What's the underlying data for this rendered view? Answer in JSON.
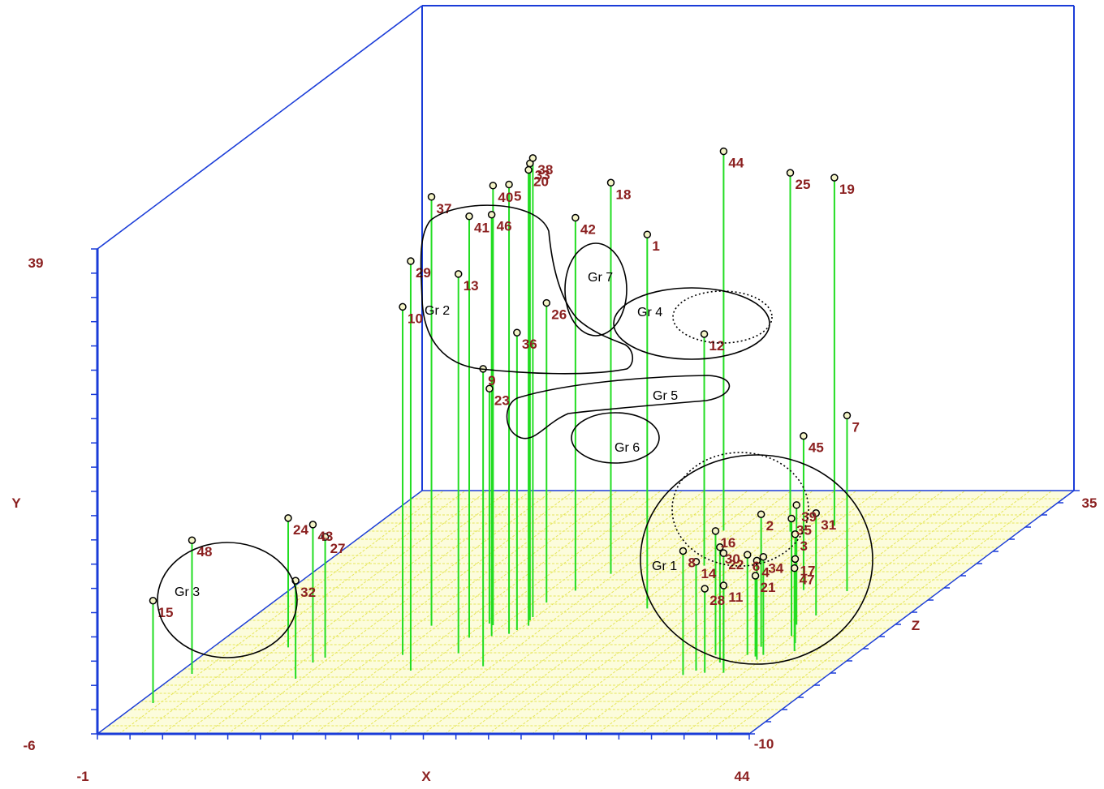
{
  "chart_data": {
    "type": "scatter3d",
    "axes": {
      "x": {
        "label": "X",
        "min": "-1",
        "max": "44"
      },
      "y": {
        "label": "Y",
        "min": "-6",
        "max": "39"
      },
      "z": {
        "label": "Z",
        "min": "-10",
        "max": "35"
      }
    },
    "colors": {
      "frame": "#1a3cd8",
      "floor_grid": "#e6e65a",
      "stems": "#22dd22",
      "point_labels": "#8b2020",
      "markers": "#000000"
    },
    "points": [
      {
        "id": "1",
        "x": 25.4,
        "y": 28.7,
        "z": 13.2
      },
      {
        "id": "2",
        "x": 36.8,
        "y": 6.3,
        "z": 6.1
      },
      {
        "id": "3",
        "x": 38.8,
        "y": 4.1,
        "z": 6.8
      },
      {
        "id": "4",
        "x": 37.7,
        "y": 3.2,
        "z": 3.7
      },
      {
        "id": "5",
        "x": 18.2,
        "y": 35.7,
        "z": 8.5
      },
      {
        "id": "6",
        "x": 36.6,
        "y": 3.3,
        "z": 4.6
      },
      {
        "id": "7",
        "x": 37.6,
        "y": 10.3,
        "z": 16.4
      },
      {
        "id": "8",
        "x": 34.0,
        "y": 5.5,
        "z": 0.9
      },
      {
        "id": "9",
        "x": 19.4,
        "y": 21.6,
        "z": 2.5
      },
      {
        "id": "10",
        "x": 12.8,
        "y": 26.3,
        "z": 4.6
      },
      {
        "id": "11",
        "x": 36.6,
        "y": 2.1,
        "z": 1.3
      },
      {
        "id": "12",
        "x": 25.4,
        "y": 15.5,
        "z": 21.1
      },
      {
        "id": "13",
        "x": 16.5,
        "y": 29.2,
        "z": 4.9
      },
      {
        "id": "14",
        "x": 34.5,
        "y": 4.1,
        "z": 1.7
      },
      {
        "id": "15",
        "x": 0.0,
        "y": 3.5,
        "z": -4.3
      },
      {
        "id": "16",
        "x": 34.4,
        "y": 5.5,
        "z": 4.6
      },
      {
        "id": "17",
        "x": 38.6,
        "y": 1.6,
        "z": 7.2
      },
      {
        "id": "18",
        "x": 19.7,
        "y": 30.3,
        "z": 19.6
      },
      {
        "id": "19",
        "x": 30.7,
        "y": 26.3,
        "z": 28.5
      },
      {
        "id": "20",
        "x": 18.8,
        "y": 36.3,
        "z": 10.0
      },
      {
        "id": "21",
        "x": 37.3,
        "y": 1.5,
        "z": 4.3
      },
      {
        "id": "22",
        "x": 36.2,
        "y": 4.7,
        "z": 2.1
      },
      {
        "id": "23",
        "x": 15.9,
        "y": 15.8,
        "z": 10.4
      },
      {
        "id": "24",
        "x": 4.2,
        "y": 6.0,
        "z": 6.0
      },
      {
        "id": "25",
        "x": 28.2,
        "y": 27.3,
        "z": 27.4
      },
      {
        "id": "26",
        "x": 17.9,
        "y": 21.8,
        "z": 14.3
      },
      {
        "id": "27",
        "x": 7.7,
        "y": 5.2,
        "z": 4.1
      },
      {
        "id": "28",
        "x": 35.3,
        "y": 1.8,
        "z": 1.3
      },
      {
        "id": "29",
        "x": 14.8,
        "y": 32.0,
        "z": 1.7
      },
      {
        "id": "30",
        "x": 35.4,
        "y": 4.7,
        "z": 3.2
      },
      {
        "id": "31",
        "x": 37.7,
        "y": 3.5,
        "z": 11.9
      },
      {
        "id": "32",
        "x": 7.6,
        "y": 3.1,
        "z": 0.2
      },
      {
        "id": "33",
        "x": 18.4,
        "y": 36.4,
        "z": 11.0
      },
      {
        "id": "34",
        "x": 37.7,
        "y": 3.1,
        "z": 4.6
      },
      {
        "id": "35",
        "x": 37.9,
        "y": 4.9,
        "z": 8.1
      },
      {
        "id": "36",
        "x": 18.4,
        "y": 21.6,
        "z": 9.2
      },
      {
        "id": "37",
        "x": 12.1,
        "y": 33.8,
        "z": 10.0
      },
      {
        "id": "38",
        "x": 18.3,
        "y": 36.6,
        "z": 11.6
      },
      {
        "id": "39",
        "x": 37.2,
        "y": 5.1,
        "z": 10.2
      },
      {
        "id": "40",
        "x": 16.3,
        "y": 34.8,
        "z": 10.1
      },
      {
        "id": "41",
        "x": 15.8,
        "y": 33.1,
        "z": 7.8
      },
      {
        "id": "42",
        "x": 18.8,
        "y": 28.6,
        "z": 16.5
      },
      {
        "id": "43",
        "x": 7.3,
        "y": 6.8,
        "z": 3.2
      },
      {
        "id": "44",
        "x": 23.5,
        "y": 29.2,
        "z": 27.6
      },
      {
        "id": "45",
        "x": 34.5,
        "y": 8.3,
        "z": 16.6
      },
      {
        "id": "46",
        "x": 17.2,
        "y": 33.1,
        "z": 8.1
      },
      {
        "id": "47",
        "x": 39.5,
        "y": 1.7,
        "z": 5.3
      },
      {
        "id": "48",
        "x": 0.0,
        "y": 6.4,
        "z": 1.1
      }
    ],
    "groups": [
      "Gr 1",
      "Gr 2",
      "Gr 3",
      "Gr 4",
      "Gr 5",
      "Gr 6",
      "Gr 7"
    ]
  }
}
